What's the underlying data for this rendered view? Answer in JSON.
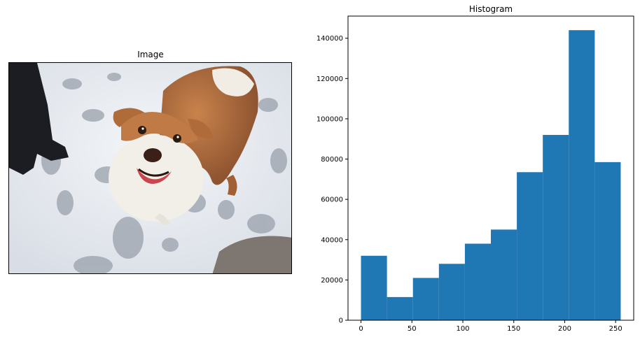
{
  "left_panel": {
    "title": "Image"
  },
  "chart_data": {
    "type": "bar",
    "title": "Histogram",
    "xlabel": "",
    "ylabel": "",
    "bin_edges": [
      0,
      25.5,
      51,
      76.5,
      102,
      127.5,
      153,
      178.5,
      204,
      229.5,
      255
    ],
    "values": [
      32000,
      11500,
      21000,
      28000,
      38000,
      45000,
      73500,
      92000,
      144000,
      78500
    ],
    "xlim": [
      -12.75,
      267.75
    ],
    "ylim": [
      0,
      151000
    ],
    "x_ticks": [
      0,
      50,
      100,
      150,
      200,
      250
    ],
    "y_ticks": [
      0,
      20000,
      40000,
      60000,
      80000,
      100000,
      120000,
      140000
    ],
    "bar_color": "#1f77b4",
    "grid": false
  }
}
